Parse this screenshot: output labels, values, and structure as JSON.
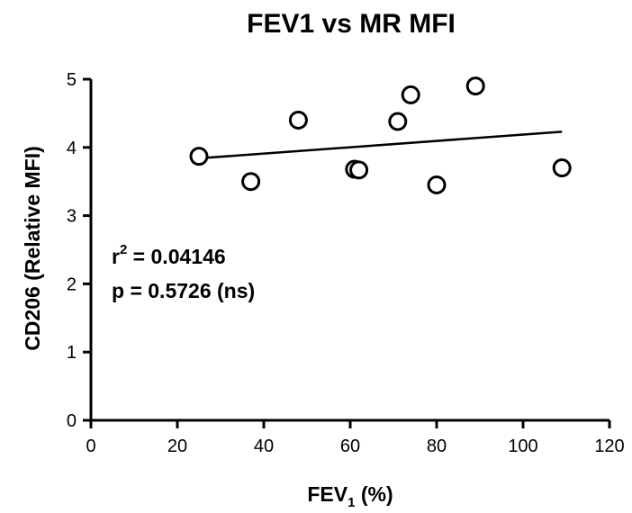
{
  "chart_data": {
    "type": "scatter",
    "title": "FEV1 vs MR MFI",
    "xlabel_main": "FEV",
    "xlabel_sub": "1",
    "xlabel_unit": " (%)",
    "ylabel": "CD206 (Relative MFI)",
    "xlim": [
      0,
      120
    ],
    "ylim": [
      0,
      5
    ],
    "xticks": [
      "0",
      "20",
      "40",
      "60",
      "80",
      "100",
      "120"
    ],
    "yticks": [
      "0",
      "1",
      "2",
      "3",
      "4",
      "5"
    ],
    "points": [
      {
        "x": 25,
        "y": 3.87
      },
      {
        "x": 37,
        "y": 3.5
      },
      {
        "x": 48,
        "y": 4.4
      },
      {
        "x": 61,
        "y": 3.68
      },
      {
        "x": 62,
        "y": 3.67
      },
      {
        "x": 71,
        "y": 4.38
      },
      {
        "x": 74,
        "y": 4.77
      },
      {
        "x": 80,
        "y": 3.45
      },
      {
        "x": 89,
        "y": 4.9
      },
      {
        "x": 109,
        "y": 3.7
      }
    ],
    "fit_line": {
      "x": [
        25,
        109
      ],
      "y": [
        3.84,
        4.23
      ]
    },
    "annotations": {
      "r2_prefix": "r",
      "r2_sup": "2",
      "r2_value": " = 0.04146",
      "p_text": "p = 0.5726 (ns)"
    },
    "grid": false,
    "legend": "none"
  }
}
